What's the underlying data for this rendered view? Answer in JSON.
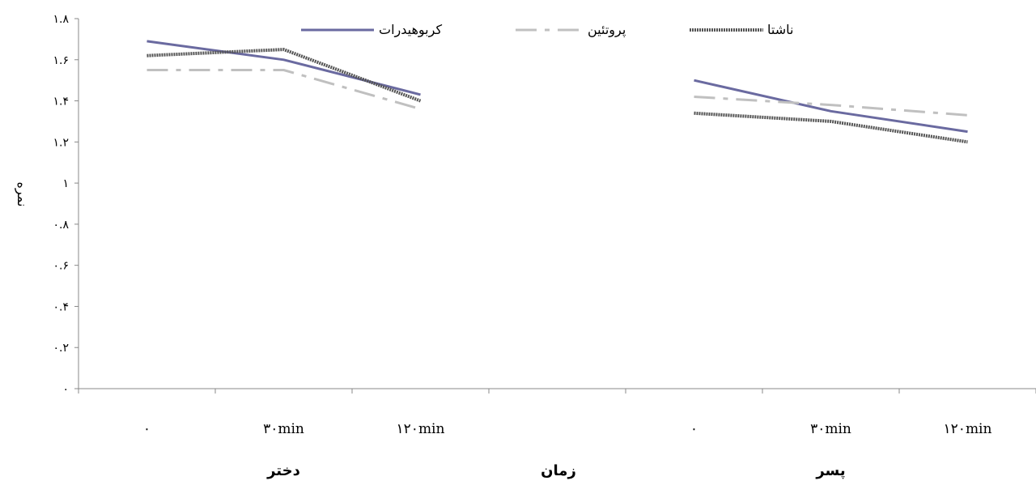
{
  "chart_data": {
    "type": "line",
    "ylabel": "نمره",
    "xlabel": "زمان",
    "ylim": [
      0,
      1.8
    ],
    "yticks": [
      0,
      0.2,
      0.4,
      0.6,
      0.8,
      1,
      1.2,
      1.4,
      1.6,
      1.8
    ],
    "ytick_labels": [
      "۰",
      "۰.۲",
      "۰.۴",
      "۰.۶",
      "۰.۸",
      "۱",
      "۱.۲",
      "۱.۴",
      "۱.۶",
      "۱.۸"
    ],
    "grid": false,
    "legend_position": "top",
    "categories": [
      "۰",
      "۳۰min",
      "۱۲۰min",
      "",
      "۰",
      "۳۰min",
      "۱۲۰min"
    ],
    "groups": [
      {
        "label": "دختر",
        "categories": [
          "۰",
          "۳۰min",
          "۱۲۰min"
        ]
      },
      {
        "label": "پسر",
        "categories": [
          "۰",
          "۳۰min",
          "۱۲۰min"
        ]
      }
    ],
    "series": [
      {
        "name": "کربوهیدرات",
        "color": "#6a6aa0",
        "style": "solid",
        "values": [
          1.69,
          1.6,
          1.43,
          null,
          1.5,
          1.35,
          1.25
        ]
      },
      {
        "name": "پروتئین",
        "color": "#c0c0c0",
        "style": "dashdot",
        "values": [
          1.55,
          1.55,
          1.36,
          null,
          1.42,
          1.38,
          1.33
        ]
      },
      {
        "name": "ناشتا",
        "color": "#555555",
        "style": "textured",
        "values": [
          1.62,
          1.65,
          1.4,
          null,
          1.34,
          1.3,
          1.2
        ]
      }
    ]
  }
}
